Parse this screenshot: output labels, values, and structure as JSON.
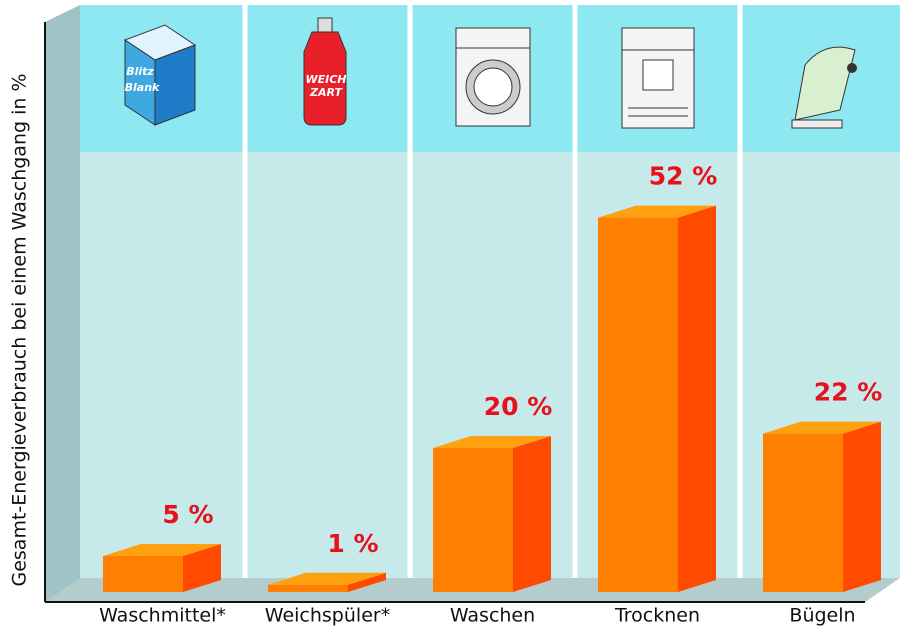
{
  "chart_data": {
    "type": "bar3d",
    "y_label": "Gesamt-Energieverbrauch bei einem Waschgang in %",
    "categories": [
      "Waschmittel*",
      "Weichspüler*",
      "Waschen",
      "Trocknen",
      "Bügeln"
    ],
    "values": [
      5,
      1,
      20,
      52,
      22
    ],
    "value_labels": [
      "5 %",
      "1 %",
      "20 %",
      "52 %",
      "22 %"
    ],
    "annotations": [
      "Blitz",
      "Blank",
      "WEICH",
      "ZART"
    ],
    "color": "#ff8000",
    "ylim": [
      0,
      80
    ]
  }
}
